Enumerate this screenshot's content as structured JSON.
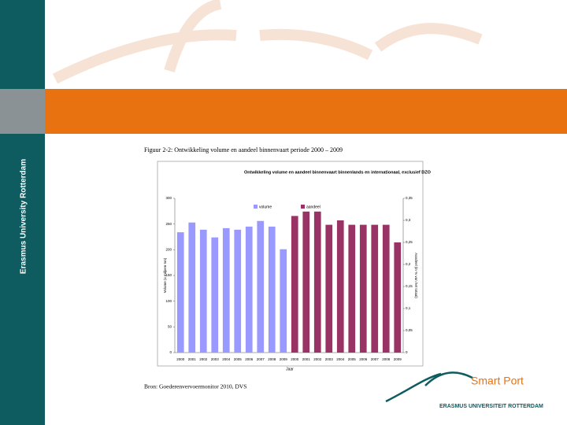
{
  "slide": {
    "sidebar_text": "Erasmus University Rotterdam",
    "figure_caption": "Figuur 2-2: Ontwikkeling volume en aandeel binnenvaart periode 2000 – 2009",
    "source": "Bron: Goederenvervoermonitor 2010, DVS",
    "logo_text": "Smart Port",
    "logo_subtext": "ERASMUS UNIVERSITEIT ROTTERDAM"
  },
  "chart_data": {
    "type": "bar",
    "title": "Ontwikkeling volume en aandeel binnenvaart binnenlands en internationaal, exclusief DZO",
    "x_label": "Jaar",
    "y_label": "Volume (x miljoen ton)",
    "y2_label": "Aandeel (in % van het totaal)",
    "categories": [
      "2000",
      "2001",
      "2002",
      "2003",
      "2004",
      "2005",
      "2006",
      "2007",
      "2008",
      "2009",
      "2000",
      "2001",
      "2002",
      "2003",
      "2004",
      "2005",
      "2006",
      "2007",
      "2008",
      "2009"
    ],
    "series": [
      {
        "name": "volume",
        "color": "#9999ff",
        "values": [
          234,
          253,
          239,
          224,
          242,
          239,
          245,
          256,
          245,
          201,
          null,
          null,
          null,
          null,
          null,
          null,
          null,
          null,
          null,
          null
        ]
      },
      {
        "name": "aandeel",
        "color": "#993366",
        "axis": "y2",
        "values": [
          null,
          null,
          null,
          null,
          null,
          null,
          null,
          null,
          null,
          null,
          0.31,
          0.32,
          0.32,
          0.29,
          0.3,
          0.29,
          0.29,
          0.29,
          0.29,
          0.25
        ]
      }
    ],
    "ylim": [
      0,
      300
    ],
    "yticks": [
      0,
      50,
      100,
      150,
      200,
      250,
      300
    ],
    "y2lim": [
      0,
      0.35
    ],
    "y2ticks": [
      {
        "value": 0,
        "label": "0"
      },
      {
        "value": 0.05,
        "label": "0,05"
      },
      {
        "value": 0.1,
        "label": "0,1"
      },
      {
        "value": 0.15,
        "label": "0,15"
      },
      {
        "value": 0.2,
        "label": "0,2"
      },
      {
        "value": 0.25,
        "label": "0,25"
      },
      {
        "value": 0.3,
        "label": "0,3"
      },
      {
        "value": 0.35,
        "label": "0,35"
      }
    ],
    "grid": false,
    "legend": "top"
  }
}
